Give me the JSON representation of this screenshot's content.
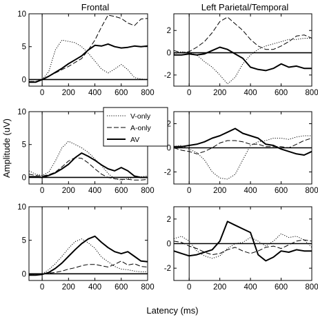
{
  "figure": {
    "ylabel": "Amplitude (uV)",
    "xlabel": "Latency (ms)",
    "column_titles": [
      "Frontal",
      "Left Parietal/Temporal"
    ]
  },
  "legend": {
    "entries": [
      {
        "label": "V-only",
        "style": "dotted"
      },
      {
        "label": "A-only",
        "style": "dashed"
      },
      {
        "label": "AV",
        "style": "solid-thick"
      }
    ]
  },
  "chart_data": [
    {
      "type": "line",
      "panel": "frontal-row1",
      "column": "Frontal",
      "xlim": [
        -100,
        800
      ],
      "ylim": [
        -1,
        10
      ],
      "xticks": [
        0,
        200,
        400,
        600,
        800
      ],
      "yticks": [
        0,
        5,
        10
      ],
      "series": [
        {
          "name": "V-only",
          "x": [
            -100,
            -50,
            0,
            50,
            100,
            150,
            200,
            250,
            300,
            350,
            400,
            450,
            500,
            550,
            600,
            650,
            700,
            750,
            800
          ],
          "values": [
            -0.3,
            -0.3,
            0,
            1.2,
            4.5,
            6.0,
            5.8,
            5.6,
            5.0,
            4.0,
            2.8,
            1.6,
            1.0,
            1.6,
            2.3,
            1.5,
            0.3,
            0.1,
            0.0
          ]
        },
        {
          "name": "A-only",
          "x": [
            -100,
            -50,
            0,
            50,
            100,
            150,
            200,
            250,
            300,
            350,
            400,
            450,
            500,
            550,
            600,
            650,
            700,
            750,
            800
          ],
          "values": [
            -0.3,
            -0.3,
            0,
            0.5,
            1.0,
            1.5,
            2.0,
            2.6,
            3.2,
            4.5,
            6.0,
            8.0,
            9.8,
            9.6,
            9.3,
            8.6,
            8.2,
            9.2,
            9.3
          ]
        },
        {
          "name": "AV",
          "x": [
            -100,
            -50,
            0,
            50,
            100,
            150,
            200,
            250,
            300,
            350,
            400,
            450,
            500,
            550,
            600,
            650,
            700,
            750,
            800
          ],
          "values": [
            -0.4,
            -0.4,
            0,
            0.5,
            1.1,
            1.7,
            2.4,
            3.0,
            3.6,
            4.5,
            5.2,
            5.1,
            5.4,
            5.0,
            4.8,
            4.9,
            5.1,
            5.0,
            5.1
          ]
        }
      ]
    },
    {
      "type": "line",
      "panel": "ltp-row1",
      "column": "Left Parietal/Temporal",
      "xlim": [
        -100,
        800
      ],
      "ylim": [
        -3,
        3.5
      ],
      "xticks": [
        0,
        200,
        400,
        600,
        800
      ],
      "yticks": [
        -2,
        0,
        2
      ],
      "series": [
        {
          "name": "V-only",
          "x": [
            -100,
            -50,
            0,
            50,
            100,
            150,
            200,
            250,
            300,
            350,
            400,
            450,
            500,
            550,
            600,
            650,
            700,
            750,
            800
          ],
          "values": [
            -0.1,
            0.1,
            0,
            -0.2,
            -0.8,
            -1.3,
            -2.0,
            -2.8,
            -2.2,
            -1.0,
            -0.2,
            0.3,
            0.6,
            0.8,
            1.0,
            1.2,
            1.2,
            1.3,
            1.3
          ]
        },
        {
          "name": "A-only",
          "x": [
            -100,
            -50,
            0,
            50,
            100,
            150,
            200,
            250,
            300,
            350,
            400,
            450,
            500,
            550,
            600,
            650,
            700,
            750,
            800
          ],
          "values": [
            0.2,
            0,
            0.1,
            0.5,
            1.0,
            1.8,
            2.8,
            3.2,
            2.6,
            2.0,
            1.2,
            0.6,
            0.3,
            0.3,
            0.6,
            1.0,
            1.5,
            1.6,
            1.3
          ]
        },
        {
          "name": "AV",
          "x": [
            -100,
            -50,
            0,
            50,
            100,
            150,
            200,
            250,
            300,
            350,
            400,
            450,
            500,
            550,
            600,
            650,
            700,
            750,
            800
          ],
          "values": [
            -0.2,
            -0.2,
            -0.1,
            -0.2,
            -0.1,
            0.2,
            0.5,
            0.3,
            -0.1,
            -0.5,
            -1.3,
            -1.5,
            -1.6,
            -1.4,
            -1.0,
            -1.3,
            -1.2,
            -1.4,
            -1.4
          ]
        }
      ]
    },
    {
      "type": "line",
      "panel": "frontal-row2",
      "column": "Frontal",
      "xlim": [
        -100,
        800
      ],
      "ylim": [
        -1,
        10
      ],
      "xticks": [
        0,
        200,
        400,
        600,
        800
      ],
      "yticks": [
        0,
        5,
        10
      ],
      "series": [
        {
          "name": "V-only",
          "x": [
            -100,
            -50,
            0,
            50,
            100,
            150,
            200,
            250,
            300,
            350,
            400,
            450,
            500,
            550,
            600,
            650,
            700,
            750,
            800
          ],
          "values": [
            1.0,
            0.5,
            0.3,
            0.8,
            2.5,
            4.5,
            5.5,
            5.0,
            4.5,
            3.8,
            2.8,
            1.8,
            0.6,
            -0.2,
            -0.4,
            -0.2,
            0,
            0.1,
            0.2
          ]
        },
        {
          "name": "A-only",
          "x": [
            -100,
            -50,
            0,
            50,
            100,
            150,
            200,
            250,
            300,
            350,
            400,
            450,
            500,
            550,
            600,
            650,
            700,
            750,
            800
          ],
          "values": [
            0.5,
            0.3,
            0.2,
            0.4,
            0.8,
            1.6,
            2.5,
            3.0,
            2.9,
            2.2,
            1.3,
            0.5,
            0,
            -0.2,
            -0.3,
            -0.3,
            -0.4,
            -0.4,
            -0.3
          ]
        },
        {
          "name": "AV",
          "x": [
            -100,
            -50,
            0,
            50,
            100,
            150,
            200,
            250,
            300,
            350,
            400,
            450,
            500,
            550,
            600,
            650,
            700,
            750,
            800
          ],
          "values": [
            0.1,
            0.1,
            0,
            0.3,
            0.7,
            1.3,
            2.0,
            3.0,
            3.7,
            3.2,
            2.6,
            1.9,
            1.3,
            1.0,
            1.5,
            1.0,
            0.2,
            0,
            0
          ]
        }
      ]
    },
    {
      "type": "line",
      "panel": "ltp-row2",
      "column": "Left Parietal/Temporal",
      "xlim": [
        -100,
        800
      ],
      "ylim": [
        -3,
        3
      ],
      "xticks": [
        0,
        200,
        400,
        600,
        800
      ],
      "yticks": [
        -2,
        0,
        2
      ],
      "series": [
        {
          "name": "V-only",
          "x": [
            -100,
            -50,
            0,
            50,
            100,
            150,
            200,
            250,
            300,
            350,
            400,
            450,
            500,
            550,
            600,
            650,
            700,
            750,
            800
          ],
          "values": [
            0.1,
            0.2,
            -0.1,
            -0.4,
            -1.0,
            -2.0,
            -2.5,
            -2.6,
            -2.2,
            -1.0,
            0.2,
            0.5,
            0.6,
            0.8,
            0.8,
            0.7,
            0.9,
            1.0,
            1.0
          ]
        },
        {
          "name": "A-only",
          "x": [
            -100,
            -50,
            0,
            50,
            100,
            150,
            200,
            250,
            300,
            350,
            400,
            450,
            500,
            550,
            600,
            650,
            700,
            750,
            800
          ],
          "values": [
            0,
            -0.2,
            -0.3,
            -0.5,
            -0.3,
            0,
            0.4,
            0.6,
            0.6,
            0.5,
            0.3,
            0.3,
            0.1,
            0.1,
            0.1,
            0,
            0.3,
            0.6,
            0.8
          ]
        },
        {
          "name": "AV",
          "x": [
            -100,
            -50,
            0,
            50,
            100,
            150,
            200,
            250,
            300,
            350,
            400,
            450,
            500,
            550,
            600,
            650,
            700,
            750,
            800
          ],
          "values": [
            0.1,
            0.1,
            0.2,
            0.3,
            0.5,
            0.8,
            1.0,
            1.3,
            1.6,
            1.2,
            1.0,
            0.8,
            0.3,
            0.2,
            -0.1,
            -0.3,
            -0.5,
            -0.6,
            -0.3
          ]
        }
      ]
    },
    {
      "type": "line",
      "panel": "frontal-row3",
      "column": "Frontal",
      "xlim": [
        -100,
        800
      ],
      "ylim": [
        -1,
        10
      ],
      "xticks": [
        0,
        200,
        400,
        600,
        800
      ],
      "yticks": [
        0,
        5,
        10
      ],
      "series": [
        {
          "name": "V-only",
          "x": [
            -100,
            -50,
            0,
            50,
            100,
            150,
            200,
            250,
            300,
            350,
            400,
            450,
            500,
            550,
            600,
            650,
            700,
            750,
            800
          ],
          "values": [
            -0.1,
            -0.1,
            0,
            0.6,
            1.5,
            2.6,
            3.8,
            4.8,
            5.2,
            4.6,
            3.8,
            2.5,
            1.8,
            1.1,
            0.7,
            0.6,
            0.4,
            0.3,
            0.3
          ]
        },
        {
          "name": "A-only",
          "x": [
            -100,
            -50,
            0,
            50,
            100,
            150,
            200,
            250,
            300,
            350,
            400,
            450,
            500,
            550,
            600,
            650,
            700,
            750,
            800
          ],
          "values": [
            -0.1,
            0,
            0,
            0.1,
            0.2,
            0.4,
            0.7,
            0.9,
            1.2,
            1.4,
            1.4,
            1.2,
            1.0,
            1.4,
            1.9,
            1.3,
            1.5,
            1.1,
            1.0
          ]
        },
        {
          "name": "AV",
          "x": [
            -100,
            -50,
            0,
            50,
            100,
            150,
            200,
            250,
            300,
            350,
            400,
            450,
            500,
            550,
            600,
            650,
            700,
            750,
            800
          ],
          "values": [
            -0.2,
            -0.2,
            -0.1,
            0.2,
            0.8,
            1.6,
            2.6,
            3.6,
            4.5,
            5.2,
            5.6,
            4.7,
            3.9,
            3.3,
            3.0,
            3.3,
            2.6,
            1.9,
            1.8
          ]
        }
      ]
    },
    {
      "type": "line",
      "panel": "ltp-row3",
      "column": "Left Parietal/Temporal",
      "xlim": [
        -100,
        800
      ],
      "ylim": [
        -3,
        3
      ],
      "xticks": [
        0,
        200,
        400,
        600,
        800
      ],
      "yticks": [
        -2,
        0,
        2
      ],
      "series": [
        {
          "name": "V-only",
          "x": [
            -100,
            -50,
            0,
            50,
            100,
            150,
            200,
            250,
            300,
            350,
            400,
            450,
            500,
            550,
            600,
            650,
            700,
            750,
            800
          ],
          "values": [
            0.4,
            0.6,
            0.2,
            -0.6,
            -1.0,
            -1.2,
            -1.0,
            -0.4,
            0,
            0.1,
            0.5,
            0.2,
            -0.2,
            0.2,
            0.8,
            0.5,
            0.6,
            0.3,
            -0.3
          ]
        },
        {
          "name": "A-only",
          "x": [
            -100,
            -50,
            0,
            50,
            100,
            150,
            200,
            250,
            300,
            350,
            400,
            450,
            500,
            550,
            600,
            650,
            700,
            750,
            800
          ],
          "values": [
            0.2,
            0.1,
            -0.2,
            -0.4,
            -0.7,
            -0.9,
            -0.8,
            -0.5,
            -0.3,
            -0.6,
            -0.8,
            -0.6,
            -0.3,
            -0.2,
            -0.4,
            -0.1,
            0.2,
            0.3,
            0.2
          ]
        },
        {
          "name": "AV",
          "x": [
            -100,
            -50,
            0,
            50,
            100,
            150,
            200,
            250,
            300,
            350,
            400,
            450,
            500,
            550,
            600,
            650,
            700,
            750,
            800
          ],
          "values": [
            -0.6,
            -0.8,
            -1.0,
            -0.9,
            -0.7,
            -0.5,
            0.2,
            1.8,
            1.5,
            1.2,
            0.9,
            -0.9,
            -1.4,
            -1.1,
            -0.6,
            -0.7,
            -0.5,
            -0.6,
            -0.6
          ]
        }
      ]
    }
  ]
}
